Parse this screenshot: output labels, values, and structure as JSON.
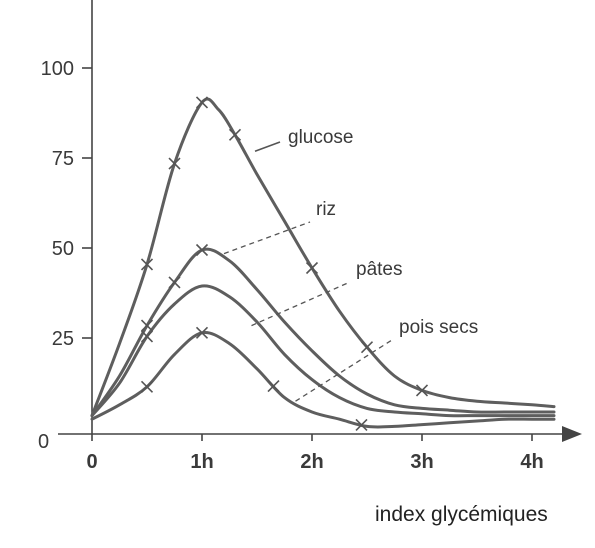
{
  "caption": "index glycémiques",
  "chart_data": {
    "type": "line",
    "x_tick_labels": [
      "0",
      "1h",
      "2h",
      "3h",
      "4h"
    ],
    "y_tick_labels": [
      "25",
      "50",
      "75",
      "100"
    ],
    "origin_label": "0",
    "xlim": [
      0,
      4.3
    ],
    "ylim": [
      0,
      115
    ],
    "grid": false,
    "legend": "inline labels",
    "series": [
      {
        "name": "glucose",
        "x": [
          0,
          0.25,
          0.5,
          0.75,
          1.0,
          1.15,
          1.3,
          1.5,
          1.75,
          2.0,
          2.25,
          2.5,
          2.75,
          3.0,
          3.25,
          3.5,
          3.75,
          4.0,
          4.2
        ],
        "y": [
          4,
          24,
          46,
          74,
          91,
          89,
          82,
          71,
          58,
          45,
          33,
          23,
          15,
          11,
          9,
          8,
          7.5,
          7,
          6.5
        ],
        "markers_x": [
          0.5,
          0.75,
          1.0,
          1.3,
          2.0,
          2.5,
          3.0
        ]
      },
      {
        "name": "riz",
        "x": [
          0,
          0.25,
          0.5,
          0.75,
          1.0,
          1.25,
          1.5,
          1.75,
          2.0,
          2.25,
          2.5,
          2.75,
          3.0,
          3.25,
          3.5,
          3.75,
          4.0,
          4.2
        ],
        "y": [
          4,
          15,
          29,
          41,
          50,
          47,
          39,
          30,
          22,
          15,
          10,
          7,
          6,
          5.5,
          5,
          5,
          5,
          5
        ],
        "markers_x": [
          0.5,
          0.75,
          1.0
        ]
      },
      {
        "name": "pâtes",
        "x": [
          0,
          0.25,
          0.5,
          0.75,
          1.0,
          1.25,
          1.5,
          1.75,
          2.0,
          2.25,
          2.5,
          2.75,
          3.0,
          3.25,
          3.5,
          3.75,
          4.0,
          4.2
        ],
        "y": [
          4,
          13,
          26,
          35,
          40,
          37,
          30,
          21,
          14,
          9,
          6,
          5,
          4.5,
          4,
          4,
          4,
          4,
          4
        ],
        "markers_x": [
          0.5
        ]
      },
      {
        "name": "pois secs",
        "x": [
          0,
          0.25,
          0.5,
          0.75,
          1.0,
          1.25,
          1.5,
          1.75,
          2.0,
          2.25,
          2.5,
          2.75,
          3.0,
          3.25,
          3.5,
          3.75,
          4.0,
          4.2
        ],
        "y": [
          3,
          7,
          12,
          21,
          27,
          24,
          17,
          9,
          5,
          3,
          1,
          1,
          1.5,
          2,
          2.5,
          3,
          3,
          3
        ],
        "markers_x": [
          0.5,
          1.0,
          1.65,
          2.45
        ]
      }
    ],
    "annotations": [
      {
        "series": "glucose",
        "text": "glucose",
        "anchor_x": 1.5,
        "anchor_y": 78
      },
      {
        "series": "riz",
        "text": "riz",
        "anchor_x": 1.2,
        "anchor_y": 49
      },
      {
        "series": "pâtes",
        "text": "pâtes",
        "anchor_x": 1.45,
        "anchor_y": 29
      },
      {
        "series": "pois secs",
        "text": "pois secs",
        "anchor_x": 1.85,
        "anchor_y": 8
      }
    ]
  }
}
